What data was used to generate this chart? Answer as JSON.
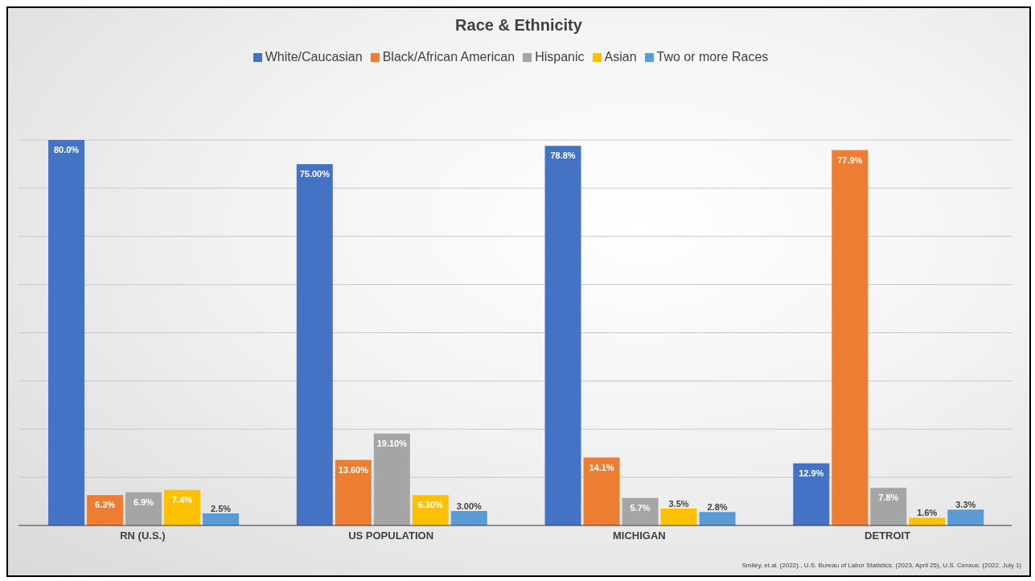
{
  "chart_data": {
    "type": "bar",
    "title": "Race & Ethnicity",
    "categories": [
      "RN (U.S.)",
      "US POPULATION",
      "MICHIGAN",
      "DETROIT"
    ],
    "series": [
      {
        "name": "White/Caucasian",
        "color": "#4472c4",
        "values": [
          80.0,
          75.0,
          78.8,
          12.9
        ],
        "value_labels": [
          "80.0%",
          "75.00%",
          "78.8%",
          "12.9%"
        ]
      },
      {
        "name": "Black/African American",
        "color": "#ed7d31",
        "values": [
          6.3,
          13.6,
          14.1,
          77.9
        ],
        "value_labels": [
          "6.3%",
          "13.60%",
          "14.1%",
          "77.9%"
        ]
      },
      {
        "name": "Hispanic",
        "color": "#a5a5a5",
        "values": [
          6.9,
          19.1,
          5.7,
          7.8
        ],
        "value_labels": [
          "6.9%",
          "19.10%",
          "5.7%",
          "7.8%"
        ]
      },
      {
        "name": "Asian",
        "color": "#ffc000",
        "values": [
          7.4,
          6.3,
          3.5,
          1.6
        ],
        "value_labels": [
          "7.4%",
          "6.30%",
          "3.5%",
          "1.6%"
        ]
      },
      {
        "name": "Two or more Races",
        "color": "#5b9bd5",
        "values": [
          2.5,
          3.0,
          2.8,
          3.3
        ],
        "value_labels": [
          "2.5%",
          "3.00%",
          "2.8%",
          "3.3%"
        ]
      }
    ],
    "ylim": [
      0,
      80
    ],
    "grid": "y",
    "tick_labels": "x",
    "legend": "top",
    "annotations": [
      "Smiley, et.al. (2022)., U.S. Bureau of Labor Statistics. (2023, April 25), U.S. Census. (2022, July 1)"
    ]
  }
}
